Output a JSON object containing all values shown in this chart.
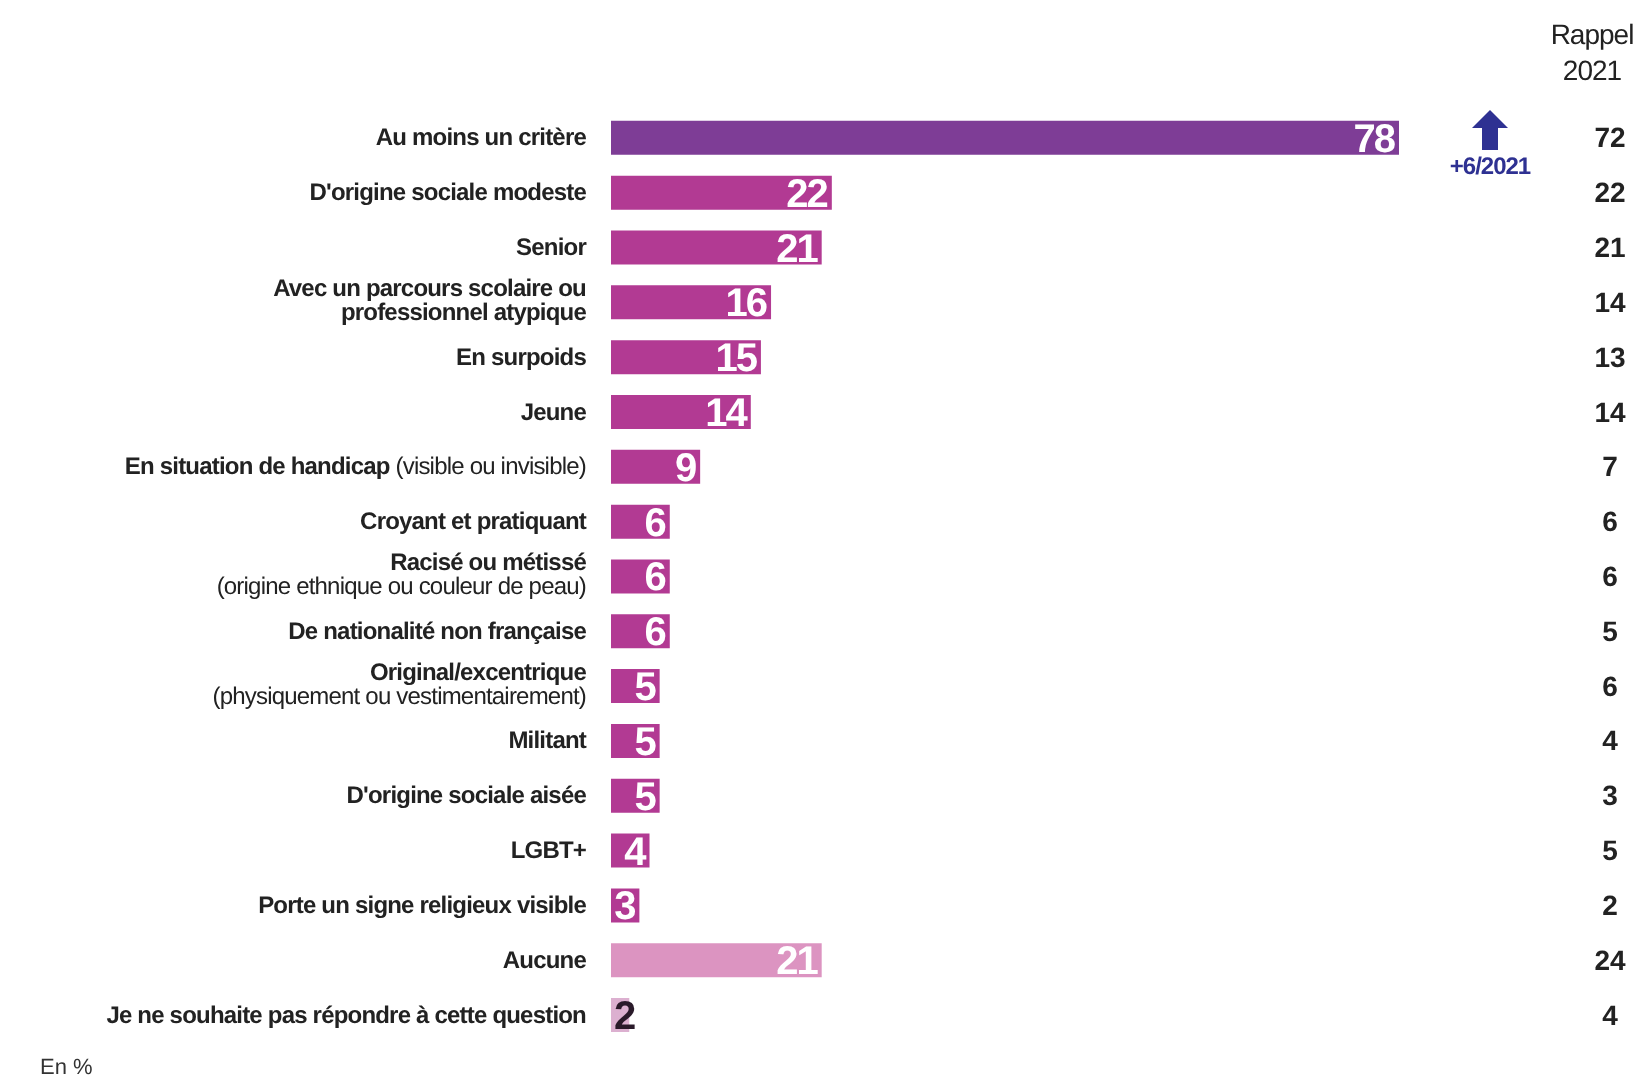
{
  "chart_data": {
    "type": "bar",
    "orientation": "horizontal",
    "data_labels": true,
    "grid": false,
    "legend": false,
    "categories": [
      "Au moins un critère",
      "D'origine sociale modeste",
      "Senior",
      "Avec un parcours scolaire ou professionnel atypique",
      "En surpoids",
      "Jeune",
      "En situation de handicap (visible ou invisible)",
      "Croyant et pratiquant",
      "Racisé ou métissé (origine ethnique ou couleur de peau)",
      "De nationalité non française",
      "Original/excentrique (physiquement ou vestimentairement)",
      "Militant",
      "D'origine sociale aisée",
      "LGBT+",
      "Porte un signe religieux visible",
      "Aucune",
      "Je ne souhaite pas répondre à cette question"
    ],
    "values": [
      78,
      22,
      21,
      16,
      15,
      14,
      9,
      6,
      6,
      6,
      5,
      5,
      5,
      4,
      3,
      21,
      2
    ],
    "colors": [
      "#7e3d96",
      "#b23a93",
      "#b23a93",
      "#b23a93",
      "#b23a93",
      "#b23a93",
      "#b23a93",
      "#b23a93",
      "#b23a93",
      "#b23a93",
      "#b23a93",
      "#b23a93",
      "#b23a93",
      "#b23a93",
      "#b23a93",
      "#dc94c1",
      "#dcb0d0"
    ],
    "annotations": [
      "Rappel 2021",
      {
        "text": "+6/2021",
        "x": 78,
        "y": "Au moins un critère"
      },
      "72",
      "22",
      "21",
      "14",
      "13",
      "14",
      "7",
      "6",
      "6",
      "5",
      "6",
      "4",
      "3",
      "5",
      "2",
      "24",
      "4",
      "En %"
    ]
  }
}
